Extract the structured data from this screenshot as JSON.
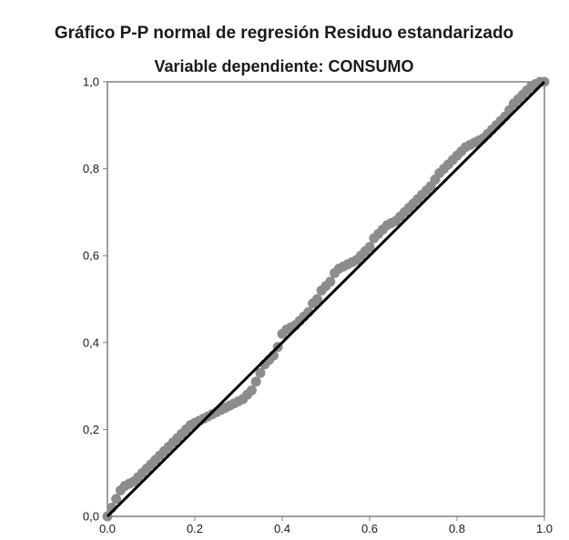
{
  "chart_data": {
    "type": "scatter",
    "title": "Gráfico P-P normal de regresión Residuo estandarizado",
    "subtitle": "Variable dependiente: CONSUMO",
    "xlabel": "",
    "ylabel": "",
    "xlim": [
      0,
      1
    ],
    "ylim": [
      0,
      1
    ],
    "xticks": [
      0.0,
      0.2,
      0.4,
      0.6,
      0.8,
      1.0
    ],
    "yticks": [
      0.0,
      0.2,
      0.4,
      0.6,
      0.8,
      1.0
    ],
    "xtick_labels": [
      "0.0",
      "0.2",
      "0.4",
      "0.6",
      "0.8",
      "1.0"
    ],
    "ytick_labels": [
      "0,0",
      "0,2",
      "0,4",
      "0,6",
      "0,8",
      "1,0"
    ],
    "grid": false,
    "legend": "none",
    "reference_line": {
      "from": [
        0,
        0
      ],
      "to": [
        1,
        1
      ]
    },
    "colors": {
      "points": "#8c8c8c",
      "reference_line": "#000000",
      "frame": "#808080",
      "text": "#1a1a1a"
    },
    "points": [
      [
        0.0,
        0.0
      ],
      [
        0.01,
        0.02
      ],
      [
        0.02,
        0.04
      ],
      [
        0.03,
        0.06
      ],
      [
        0.04,
        0.07
      ],
      [
        0.05,
        0.075
      ],
      [
        0.06,
        0.08
      ],
      [
        0.07,
        0.09
      ],
      [
        0.08,
        0.1
      ],
      [
        0.09,
        0.11
      ],
      [
        0.1,
        0.12
      ],
      [
        0.11,
        0.13
      ],
      [
        0.12,
        0.14
      ],
      [
        0.13,
        0.15
      ],
      [
        0.14,
        0.16
      ],
      [
        0.15,
        0.17
      ],
      [
        0.16,
        0.18
      ],
      [
        0.17,
        0.19
      ],
      [
        0.18,
        0.2
      ],
      [
        0.19,
        0.21
      ],
      [
        0.2,
        0.215
      ],
      [
        0.21,
        0.22
      ],
      [
        0.22,
        0.225
      ],
      [
        0.23,
        0.23
      ],
      [
        0.24,
        0.235
      ],
      [
        0.25,
        0.24
      ],
      [
        0.26,
        0.245
      ],
      [
        0.27,
        0.25
      ],
      [
        0.28,
        0.255
      ],
      [
        0.29,
        0.26
      ],
      [
        0.3,
        0.265
      ],
      [
        0.31,
        0.27
      ],
      [
        0.32,
        0.28
      ],
      [
        0.33,
        0.29
      ],
      [
        0.34,
        0.31
      ],
      [
        0.35,
        0.33
      ],
      [
        0.36,
        0.35
      ],
      [
        0.37,
        0.36
      ],
      [
        0.38,
        0.37
      ],
      [
        0.39,
        0.39
      ],
      [
        0.4,
        0.42
      ],
      [
        0.41,
        0.43
      ],
      [
        0.42,
        0.435
      ],
      [
        0.43,
        0.44
      ],
      [
        0.44,
        0.45
      ],
      [
        0.45,
        0.46
      ],
      [
        0.46,
        0.47
      ],
      [
        0.47,
        0.49
      ],
      [
        0.48,
        0.5
      ],
      [
        0.49,
        0.52
      ],
      [
        0.5,
        0.53
      ],
      [
        0.51,
        0.54
      ],
      [
        0.52,
        0.56
      ],
      [
        0.53,
        0.57
      ],
      [
        0.54,
        0.575
      ],
      [
        0.55,
        0.58
      ],
      [
        0.56,
        0.585
      ],
      [
        0.57,
        0.59
      ],
      [
        0.58,
        0.6
      ],
      [
        0.59,
        0.61
      ],
      [
        0.6,
        0.62
      ],
      [
        0.61,
        0.64
      ],
      [
        0.62,
        0.65
      ],
      [
        0.63,
        0.66
      ],
      [
        0.64,
        0.67
      ],
      [
        0.65,
        0.675
      ],
      [
        0.66,
        0.68
      ],
      [
        0.67,
        0.69
      ],
      [
        0.68,
        0.7
      ],
      [
        0.69,
        0.71
      ],
      [
        0.7,
        0.72
      ],
      [
        0.71,
        0.73
      ],
      [
        0.72,
        0.74
      ],
      [
        0.73,
        0.75
      ],
      [
        0.74,
        0.76
      ],
      [
        0.75,
        0.775
      ],
      [
        0.76,
        0.79
      ],
      [
        0.77,
        0.8
      ],
      [
        0.78,
        0.81
      ],
      [
        0.79,
        0.82
      ],
      [
        0.8,
        0.83
      ],
      [
        0.81,
        0.84
      ],
      [
        0.82,
        0.85
      ],
      [
        0.83,
        0.855
      ],
      [
        0.84,
        0.86
      ],
      [
        0.85,
        0.865
      ],
      [
        0.86,
        0.87
      ],
      [
        0.87,
        0.88
      ],
      [
        0.88,
        0.89
      ],
      [
        0.89,
        0.9
      ],
      [
        0.9,
        0.91
      ],
      [
        0.91,
        0.92
      ],
      [
        0.92,
        0.935
      ],
      [
        0.93,
        0.95
      ],
      [
        0.94,
        0.96
      ],
      [
        0.95,
        0.97
      ],
      [
        0.96,
        0.98
      ],
      [
        0.97,
        0.99
      ],
      [
        0.98,
        0.995
      ],
      [
        0.99,
        1.0
      ],
      [
        1.0,
        1.0
      ]
    ]
  }
}
